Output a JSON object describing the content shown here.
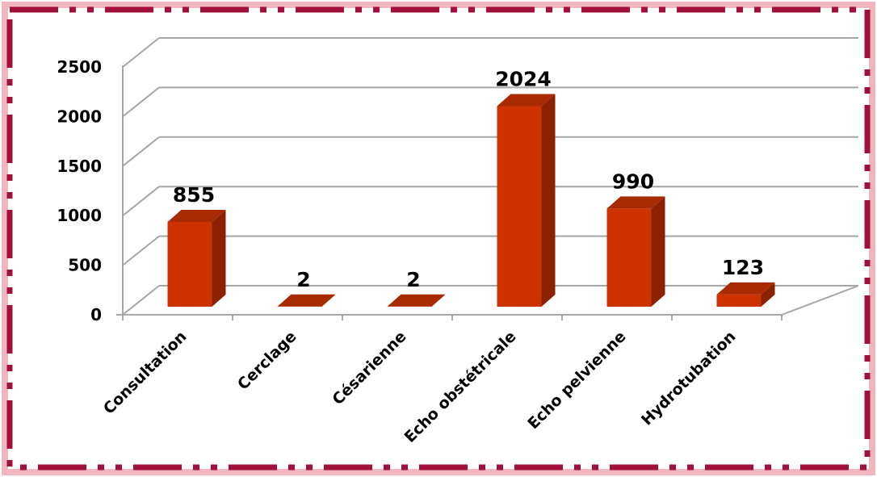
{
  "chart_data": {
    "type": "bar",
    "style": "3d-column",
    "categories": [
      "Consultation",
      "Cerclage",
      "Césarienne",
      "Echo obstétricale",
      "Echo pelvienne",
      "Hydrotubation"
    ],
    "values": [
      855,
      2,
      2,
      2024,
      990,
      123
    ],
    "data_labels": [
      "855",
      "2",
      "2",
      "2024",
      "990",
      "123"
    ],
    "title": "",
    "xlabel": "",
    "ylabel": "",
    "ylim": [
      0,
      2500
    ],
    "yticks": [
      0,
      500,
      1000,
      1500,
      2000,
      2500
    ],
    "ytick_labels": [
      "0",
      "500",
      "1000",
      "1500",
      "2000",
      "2500"
    ],
    "grid": true,
    "legend": "none",
    "colors": {
      "bar_front": "#cc3300",
      "bar_side": "#8a2200",
      "bar_top": "#a82a00",
      "gridline": "#a6a6a6",
      "border": "#a0103a",
      "border_glow": "#f2b6c0"
    }
  }
}
